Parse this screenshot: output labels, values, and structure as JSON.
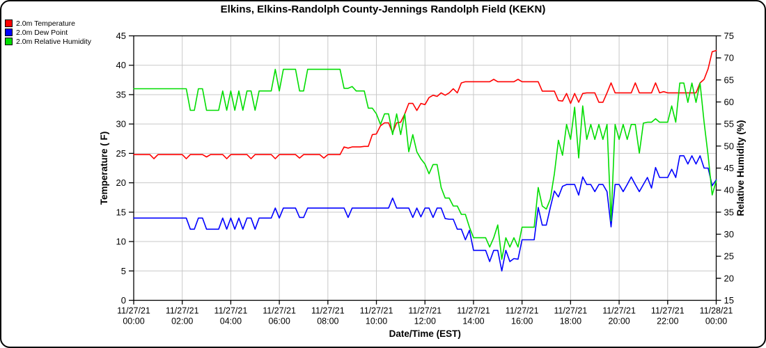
{
  "title": "Elkins, Elkins-Randolph County-Jennings Randolph Field (KEKN)",
  "chart_data": {
    "type": "line",
    "title": "Elkins, Elkins-Randolph County-Jennings Randolph Field (KEKN)",
    "legend_position": "top-left",
    "grid": {
      "color": "#c8c8c8",
      "show": true
    },
    "x_axis": {
      "label": "Date/Time (EST)",
      "min_hours": 0,
      "max_hours": 24,
      "tick_interval_hours": 2,
      "tick_labels": [
        [
          "11/27/21",
          "00:00"
        ],
        [
          "11/27/21",
          "02:00"
        ],
        [
          "11/27/21",
          "04:00"
        ],
        [
          "11/27/21",
          "06:00"
        ],
        [
          "11/27/21",
          "08:00"
        ],
        [
          "11/27/21",
          "10:00"
        ],
        [
          "11/27/21",
          "12:00"
        ],
        [
          "11/27/21",
          "14:00"
        ],
        [
          "11/27/21",
          "16:00"
        ],
        [
          "11/27/21",
          "18:00"
        ],
        [
          "11/27/21",
          "20:00"
        ],
        [
          "11/27/21",
          "22:00"
        ],
        [
          "11/28/21",
          "00:00"
        ]
      ]
    },
    "left_axis": {
      "label": "Temperature ( F)",
      "min": 0,
      "max": 45,
      "tick_step": 5
    },
    "right_axis": {
      "label": "Relative Humidity (%)",
      "min": 15,
      "max": 75,
      "tick_step": 5
    },
    "sample_step_hours": 0.1666667,
    "series": [
      {
        "name": "2.0m Temperature",
        "color": "#ff0000",
        "axis": "left",
        "values": [
          24.8,
          24.8,
          24.8,
          24.8,
          24.8,
          24.1,
          24.8,
          24.8,
          24.8,
          24.8,
          24.8,
          24.8,
          24.8,
          24.1,
          24.8,
          24.8,
          24.8,
          24.8,
          24.4,
          24.8,
          24.8,
          24.8,
          24.8,
          24.1,
          24.8,
          24.8,
          24.8,
          24.8,
          24.8,
          24.1,
          24.8,
          24.8,
          24.8,
          24.8,
          24.8,
          24.1,
          24.8,
          24.8,
          24.8,
          24.8,
          24.8,
          24.2,
          24.8,
          24.8,
          24.8,
          24.8,
          24.8,
          24.2,
          24.8,
          24.8,
          24.8,
          24.8,
          26.1,
          25.9,
          26.1,
          26.1,
          26.1,
          26.2,
          26.2,
          28.2,
          28.3,
          29.7,
          30.2,
          30.2,
          28.5,
          30.2,
          30.3,
          31.7,
          33.5,
          33.5,
          32.3,
          33.5,
          33.3,
          34.5,
          34.9,
          34.7,
          35.3,
          34.9,
          35.3,
          36.0,
          35.3,
          37.0,
          37.2,
          37.2,
          37.2,
          37.2,
          37.2,
          37.2,
          37.2,
          37.6,
          37.2,
          37.2,
          37.2,
          37.2,
          37.2,
          37.6,
          37.2,
          37.2,
          37.2,
          37.2,
          37.2,
          35.6,
          35.6,
          35.6,
          35.6,
          34.0,
          33.9,
          35.2,
          33.5,
          35.2,
          33.7,
          35.2,
          35.3,
          35.3,
          35.3,
          33.7,
          33.7,
          35.3,
          37.0,
          35.3,
          35.3,
          35.3,
          35.3,
          35.3,
          37.0,
          35.3,
          35.3,
          35.3,
          35.3,
          37.0,
          35.3,
          35.5,
          35.3,
          35.3,
          35.3,
          35.3,
          35.3,
          35.3,
          35.3,
          35.3,
          37.0,
          37.6,
          39.4,
          42.3,
          42.5
        ]
      },
      {
        "name": "2.0m Dew Point",
        "color": "#0000ff",
        "axis": "left",
        "values": [
          14.0,
          14.0,
          14.0,
          14.0,
          14.0,
          14.0,
          14.0,
          14.0,
          14.0,
          14.0,
          14.0,
          14.0,
          14.0,
          14.0,
          12.1,
          12.1,
          14.0,
          14.0,
          12.1,
          12.1,
          12.1,
          12.1,
          14.0,
          12.1,
          14.0,
          12.1,
          14.0,
          12.1,
          14.0,
          14.0,
          12.1,
          14.0,
          14.0,
          14.0,
          14.0,
          15.7,
          14.0,
          15.7,
          15.7,
          15.7,
          15.7,
          14.1,
          14.1,
          15.7,
          15.7,
          15.7,
          15.7,
          15.7,
          15.7,
          15.7,
          15.7,
          15.7,
          15.7,
          14.1,
          15.7,
          15.7,
          15.7,
          15.7,
          15.7,
          15.7,
          15.7,
          15.7,
          15.7,
          15.7,
          17.4,
          15.7,
          15.7,
          15.7,
          15.7,
          14.1,
          15.7,
          14.2,
          15.7,
          15.7,
          14.1,
          15.7,
          15.7,
          13.9,
          13.8,
          13.8,
          12.1,
          12.1,
          10.3,
          11.9,
          8.5,
          8.5,
          8.5,
          8.5,
          6.6,
          8.5,
          8.5,
          5.0,
          8.5,
          6.6,
          7.1,
          7.0,
          10.3,
          10.3,
          10.3,
          10.3,
          15.8,
          12.8,
          12.8,
          15.8,
          18.6,
          17.6,
          19.4,
          19.7,
          19.7,
          19.7,
          17.9,
          21.0,
          19.7,
          19.7,
          18.5,
          19.7,
          19.7,
          18.5,
          12.5,
          19.7,
          19.7,
          18.5,
          19.7,
          21.0,
          19.7,
          18.5,
          19.7,
          20.9,
          19.1,
          22.6,
          20.9,
          20.9,
          20.9,
          22.3,
          20.9,
          24.6,
          24.6,
          23.2,
          24.6,
          23.2,
          24.6,
          22.5,
          22.5,
          19.5,
          20.5
        ]
      },
      {
        "name": "2.0m Relative Humidity",
        "color": "#00dd00",
        "axis": "right",
        "values": [
          63.0,
          63.0,
          63.0,
          63.0,
          63.0,
          63.0,
          63.0,
          63.0,
          63.0,
          63.0,
          63.0,
          63.0,
          63.0,
          63.0,
          58.1,
          58.1,
          63.0,
          63.0,
          58.1,
          58.1,
          58.1,
          58.1,
          62.5,
          58.1,
          62.5,
          58.1,
          62.5,
          58.1,
          62.5,
          62.5,
          58.1,
          62.5,
          62.5,
          62.5,
          62.5,
          67.4,
          62.5,
          67.4,
          67.4,
          67.4,
          67.4,
          62.5,
          62.5,
          67.4,
          67.4,
          67.4,
          67.4,
          67.4,
          67.4,
          67.4,
          67.4,
          67.4,
          63.1,
          63.1,
          63.5,
          62.5,
          62.5,
          62.5,
          58.6,
          58.6,
          57.3,
          54.9,
          57.3,
          57.3,
          52.6,
          57.3,
          52.6,
          57.3,
          48.7,
          52.6,
          48.7,
          47.1,
          45.9,
          43.7,
          45.8,
          45.8,
          40.6,
          38.2,
          38.2,
          36.4,
          36.4,
          34.5,
          34.5,
          31.6,
          29.2,
          29.2,
          29.2,
          29.2,
          27.1,
          29.2,
          32.1,
          24.3,
          29.2,
          27.1,
          29.2,
          27.1,
          31.6,
          31.6,
          31.6,
          31.6,
          40.6,
          36.4,
          35.7,
          38.0,
          43.7,
          51.3,
          47.9,
          54.9,
          51.5,
          58.8,
          47.3,
          59.1,
          51.5,
          54.9,
          51.5,
          54.9,
          51.5,
          54.9,
          33.0,
          54.9,
          51.5,
          54.9,
          51.5,
          54.9,
          54.9,
          48.4,
          55.2,
          55.4,
          55.4,
          56.2,
          55.4,
          55.4,
          55.4,
          59.1,
          55.4,
          64.3,
          64.3,
          59.9,
          64.3,
          59.9,
          64.3,
          55.4,
          47.8,
          38.9,
          42.1
        ]
      }
    ]
  }
}
